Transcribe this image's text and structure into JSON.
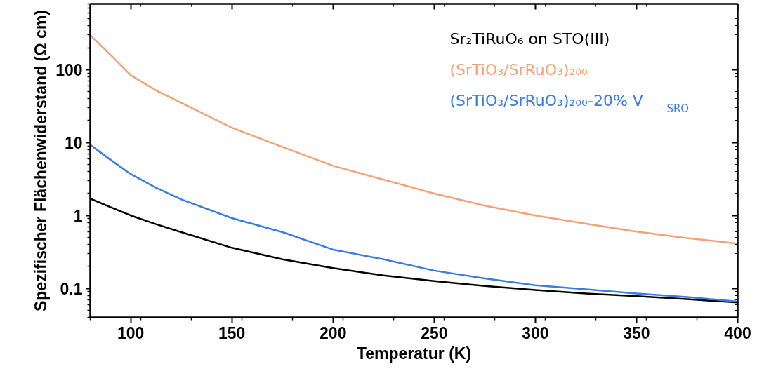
{
  "chart_data": {
    "type": "line",
    "xlabel": "Temperatur (K)",
    "ylabel": "Spezifischer Flächenwiderstand (Ω cm)",
    "xlim": [
      80,
      400
    ],
    "xticks": [
      100,
      150,
      200,
      250,
      300,
      350,
      400
    ],
    "ylim": [
      0.04,
      800
    ],
    "yticks": [
      0.1,
      1,
      10,
      100
    ],
    "log": true,
    "grid": false,
    "legend": "top right",
    "x": [
      80,
      90,
      100,
      112.5,
      125,
      150,
      175,
      200,
      225,
      250,
      275,
      300,
      325,
      350,
      375,
      400
    ],
    "series": [
      {
        "name": "Sr₂TiRuO₆ on STO(III)",
        "color": "#000000",
        "values": [
          1.7,
          1.3,
          1.0,
          0.76,
          0.59,
          0.36,
          0.25,
          0.19,
          0.15,
          0.126,
          0.108,
          0.095,
          0.085,
          0.078,
          0.071,
          0.064
        ]
      },
      {
        "name": "(SrTiO₃/SrRuO₃)₂₀₀",
        "color": "#f4a273",
        "values": [
          297,
          160,
          84,
          52,
          35,
          16,
          8.7,
          4.8,
          3.1,
          2.0,
          1.36,
          1.0,
          0.77,
          0.6,
          0.49,
          0.41
        ]
      },
      {
        "name": "(SrTiO₃/SrRuO₃)₂₀₀-20% V$_{SRO}$",
        "color": "#3a7de0",
        "values": [
          9.3,
          5.8,
          3.7,
          2.4,
          1.66,
          0.92,
          0.59,
          0.34,
          0.25,
          0.175,
          0.137,
          0.11,
          0.097,
          0.085,
          0.076,
          0.066
        ]
      }
    ]
  }
}
